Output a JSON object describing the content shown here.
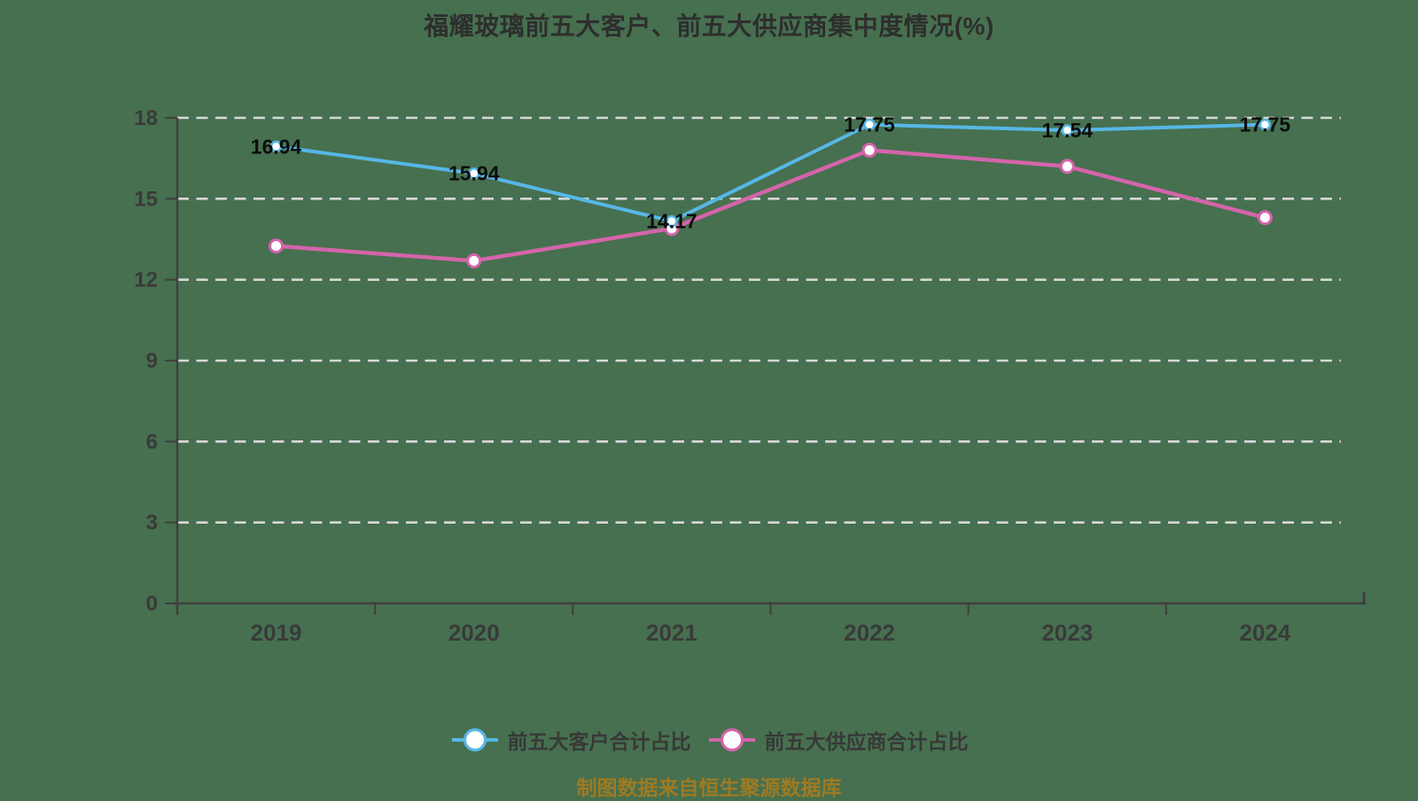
{
  "page": {
    "background_color": "#46704F",
    "source_note": "制图数据来自恒生聚源数据库",
    "source_color": "#9E7A22",
    "title_color": "#2E2E2E"
  },
  "chart_data": {
    "type": "line",
    "title": "福耀玻璃前五大客户、前五大供应商集中度情况(%)",
    "categories": [
      "2019",
      "2020",
      "2021",
      "2022",
      "2023",
      "2024"
    ],
    "series": [
      {
        "name": "前五大供应商合计占比",
        "color": "#D464AA",
        "values": [
          13.25,
          12.7,
          13.9,
          16.8,
          16.2,
          14.3
        ],
        "labels": [],
        "show_labels": false,
        "line_width": 4.5,
        "marker_radius": 7,
        "marker_stroke_width": 3
      },
      {
        "name": "前五大客户合计占比",
        "color": "#57B7E7",
        "values": [
          16.94,
          15.94,
          14.17,
          17.75,
          17.54,
          17.75
        ],
        "labels": [
          "16.94",
          "15.94",
          "14.17",
          "17.75",
          "17.54",
          "17.75"
        ],
        "show_labels": true,
        "line_width": 4,
        "marker_radius": 5.5,
        "marker_stroke_width": 2.5
      }
    ],
    "legend_order": [
      1,
      0
    ],
    "ylim": [
      0,
      18
    ],
    "yticks": [
      0,
      3,
      6,
      9,
      12,
      15,
      18
    ],
    "grid": "horizontal-dashed",
    "legend_position": "bottom",
    "axis_color": "#3F3F3F",
    "grid_color": "#D8D8D8",
    "tick_label_color": "#3A3A3A",
    "data_label_color": "#0D0D0D",
    "marker_fill": "#FFFFFF",
    "legend_text_color": "#383838"
  }
}
